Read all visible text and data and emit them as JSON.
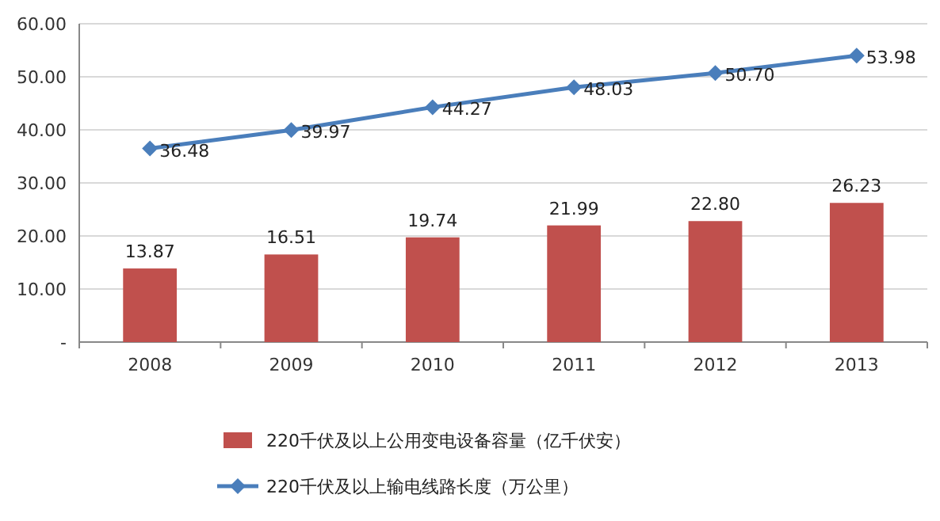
{
  "chart_data": {
    "type": "bar",
    "categories": [
      "2008",
      "2009",
      "2010",
      "2011",
      "2012",
      "2013"
    ],
    "series": [
      {
        "name": "220千伏及以上公用变电设备容量（亿千伏安）",
        "color": "#c0504d",
        "values": [
          13.87,
          16.51,
          19.74,
          21.99,
          22.8,
          26.23
        ],
        "value_labels": [
          "13.87",
          "16.51",
          "19.74",
          "21.99",
          "22.80",
          "26.23"
        ]
      },
      {
        "name": "220千伏及以上输电线路长度（万公里）",
        "type": "line",
        "color": "#4a7ebb",
        "values": [
          36.48,
          39.97,
          44.27,
          48.03,
          50.7,
          53.98
        ],
        "value_labels": [
          "36.48",
          "39.97",
          "44.27",
          "48.03",
          "50.70",
          "53.98"
        ]
      }
    ],
    "ylim": [
      0,
      60
    ],
    "yticks": [
      {
        "value": 0,
        "label": "-"
      },
      {
        "value": 10,
        "label": "10.00"
      },
      {
        "value": 20,
        "label": "20.00"
      },
      {
        "value": 30,
        "label": "30.00"
      },
      {
        "value": 40,
        "label": "40.00"
      },
      {
        "value": 50,
        "label": "50.00"
      },
      {
        "value": 60,
        "label": "60.00"
      }
    ],
    "grid": "y",
    "legend": "bottom",
    "marker": "diamond"
  }
}
